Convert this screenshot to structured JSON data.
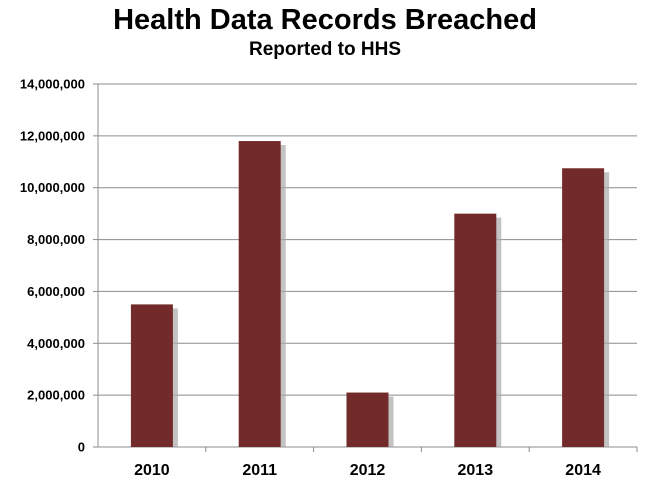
{
  "chart_data": {
    "type": "bar",
    "title": "Health Data Records Breached",
    "subtitle": "Reported to HHS",
    "xlabel": "",
    "ylabel": "",
    "categories": [
      "2010",
      "2011",
      "2012",
      "2013",
      "2014"
    ],
    "values": [
      5500000,
      11800000,
      2100000,
      9000000,
      10750000
    ],
    "ylim": [
      0,
      14000000
    ],
    "yticks": [
      0,
      2000000,
      4000000,
      6000000,
      8000000,
      10000000,
      12000000,
      14000000
    ],
    "ytick_labels": [
      "0",
      "2,000,000",
      "4,000,000",
      "6,000,000",
      "8,000,000",
      "10,000,000",
      "12,000,000",
      "14,000,000"
    ],
    "grid": true,
    "legend": "none",
    "bar_color": "#722a2a",
    "shadow_color": "#a9a9a9"
  }
}
